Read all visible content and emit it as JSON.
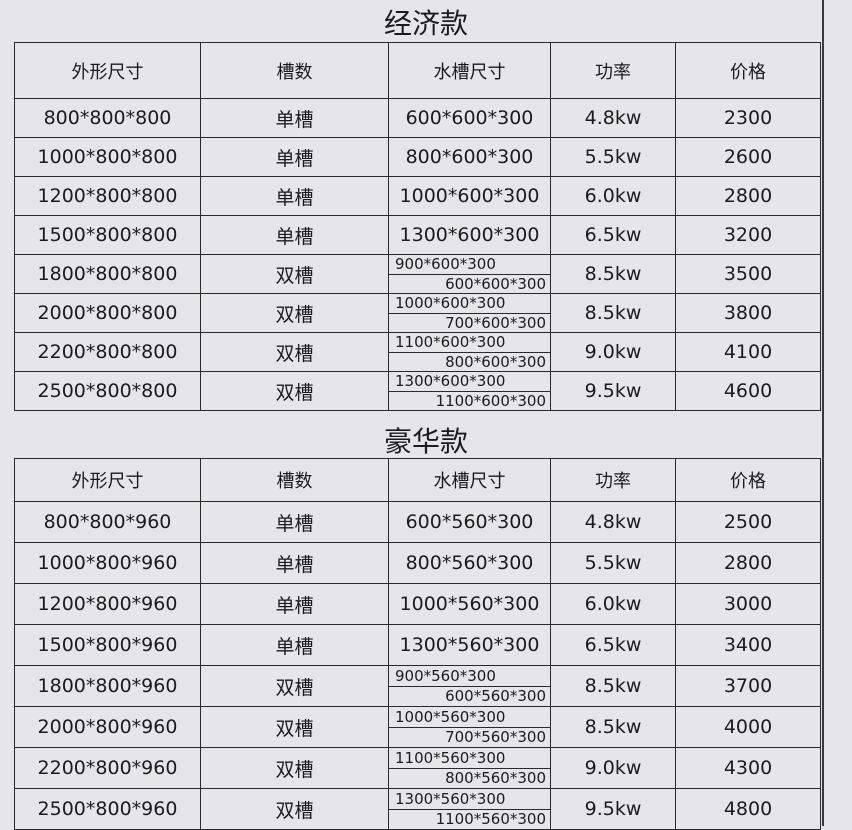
{
  "sections": [
    {
      "title": "经济款",
      "headers": [
        "外形尺寸",
        "槽数",
        "水槽尺寸",
        "功率",
        "价格"
      ],
      "rows": [
        {
          "size": "800*800*800",
          "slots": "单槽",
          "sink": [
            "600*600*300"
          ],
          "power": "4.8kw",
          "price": "2300"
        },
        {
          "size": "1000*800*800",
          "slots": "单槽",
          "sink": [
            "800*600*300"
          ],
          "power": "5.5kw",
          "price": "2600"
        },
        {
          "size": "1200*800*800",
          "slots": "单槽",
          "sink": [
            "1000*600*300"
          ],
          "power": "6.0kw",
          "price": "2800"
        },
        {
          "size": "1500*800*800",
          "slots": "单槽",
          "sink": [
            "1300*600*300"
          ],
          "power": "6.5kw",
          "price": "3200"
        },
        {
          "size": "1800*800*800",
          "slots": "双槽",
          "sink": [
            "900*600*300",
            "600*600*300"
          ],
          "power": "8.5kw",
          "price": "3500"
        },
        {
          "size": "2000*800*800",
          "slots": "双槽",
          "sink": [
            "1000*600*300",
            "700*600*300"
          ],
          "power": "8.5kw",
          "price": "3800"
        },
        {
          "size": "2200*800*800",
          "slots": "双槽",
          "sink": [
            "1100*600*300",
            "800*600*300"
          ],
          "power": "9.0kw",
          "price": "4100"
        },
        {
          "size": "2500*800*800",
          "slots": "双槽",
          "sink": [
            "1300*600*300",
            "1100*600*300"
          ],
          "power": "9.5kw",
          "price": "4600"
        }
      ]
    },
    {
      "title": "豪华款",
      "headers": [
        "外形尺寸",
        "槽数",
        "水槽尺寸",
        "功率",
        "价格"
      ],
      "rows": [
        {
          "size": "800*800*960",
          "slots": "单槽",
          "sink": [
            "600*560*300"
          ],
          "power": "4.8kw",
          "price": "2500"
        },
        {
          "size": "1000*800*960",
          "slots": "单槽",
          "sink": [
            "800*560*300"
          ],
          "power": "5.5kw",
          "price": "2800"
        },
        {
          "size": "1200*800*960",
          "slots": "单槽",
          "sink": [
            "1000*560*300"
          ],
          "power": "6.0kw",
          "price": "3000"
        },
        {
          "size": "1500*800*960",
          "slots": "单槽",
          "sink": [
            "1300*560*300"
          ],
          "power": "6.5kw",
          "price": "3400"
        },
        {
          "size": "1800*800*960",
          "slots": "双槽",
          "sink": [
            "900*560*300",
            "600*560*300"
          ],
          "power": "8.5kw",
          "price": "3700"
        },
        {
          "size": "2000*800*960",
          "slots": "双槽",
          "sink": [
            "1000*560*300",
            "700*560*300"
          ],
          "power": "8.5kw",
          "price": "4000"
        },
        {
          "size": "2200*800*960",
          "slots": "双槽",
          "sink": [
            "1100*560*300",
            "800*560*300"
          ],
          "power": "9.0kw",
          "price": "4300"
        },
        {
          "size": "2500*800*960",
          "slots": "双槽",
          "sink": [
            "1300*560*300",
            "1100*560*300"
          ],
          "power": "9.5kw",
          "price": "4800"
        }
      ]
    }
  ]
}
